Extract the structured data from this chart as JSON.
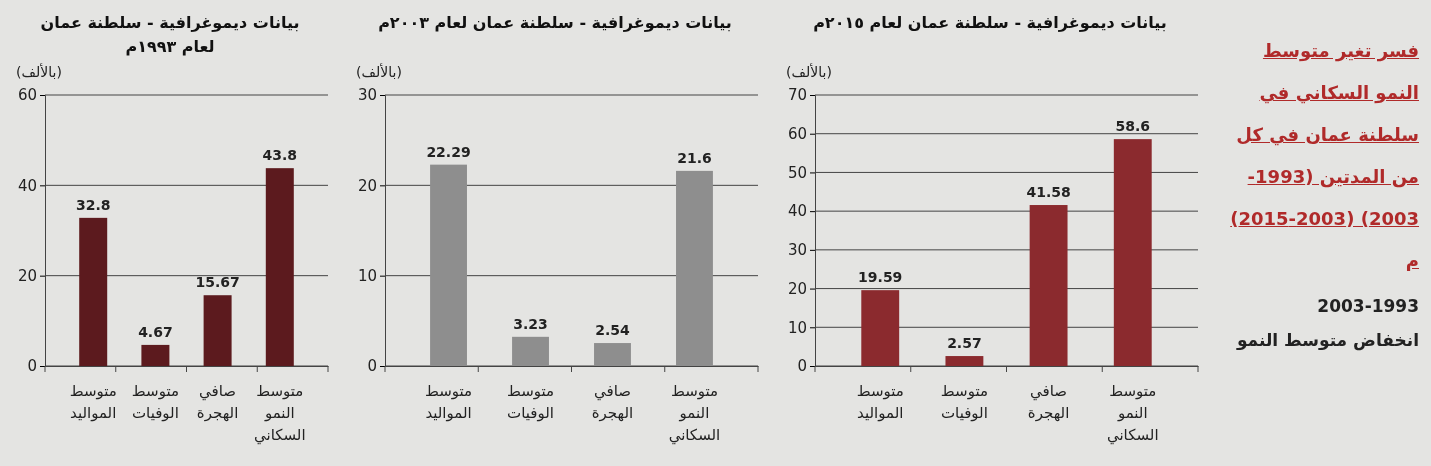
{
  "chart_data": [
    {
      "type": "bar",
      "title": "بيانات ديموغرافية - سلطنة عمان لعام ١٩٩٣م",
      "ylabel": "(بالألف)",
      "categories": [
        "متوسط المواليد",
        "متوسط الوفيات",
        "صافي الهجرة",
        "متوسط النمو السكاني"
      ],
      "values": [
        32.8,
        4.67,
        15.67,
        43.8
      ],
      "data_labels": true,
      "color": "#5c1a1e",
      "ylim": [
        0,
        60
      ],
      "yticks": [
        0,
        20,
        40,
        60
      ],
      "grid": "y"
    },
    {
      "type": "bar",
      "title": "بيانات ديموغرافية - سلطنة عمان لعام ٢٠٠٣م",
      "ylabel": "(بالألف)",
      "categories": [
        "متوسط المواليد",
        "متوسط الوفيات",
        "صافي الهجرة",
        "متوسط النمو السكاني"
      ],
      "values": [
        22.29,
        3.23,
        2.54,
        21.6
      ],
      "data_labels": true,
      "color": "#8e8e8e",
      "ylim": [
        0,
        30
      ],
      "yticks": [
        0,
        10,
        20,
        30
      ],
      "grid": "y"
    },
    {
      "type": "bar",
      "title": "بيانات ديموغرافية - سلطنة عمان لعام ٢٠١٥م",
      "ylabel": "(بالألف)",
      "categories": [
        "متوسط المواليد",
        "متوسط الوفيات",
        "صافي الهجرة",
        "متوسط النمو السكاني"
      ],
      "values": [
        19.59,
        2.57,
        41.58,
        58.6
      ],
      "data_labels": true,
      "color": "#8b2a2e",
      "ylim": [
        0,
        70
      ],
      "yticks": [
        0,
        10,
        20,
        30,
        40,
        50,
        60,
        70
      ],
      "grid": "y"
    },
    {
      "type": "other",
      "annotations": [
        "فسر تغير متوسط النمو السكاني في سلطنة عمان في كل من المدتين (1993-2003) (2003-2015) م",
        "2003-1993",
        "انخفاض متوسط النمو"
      ]
    }
  ]
}
